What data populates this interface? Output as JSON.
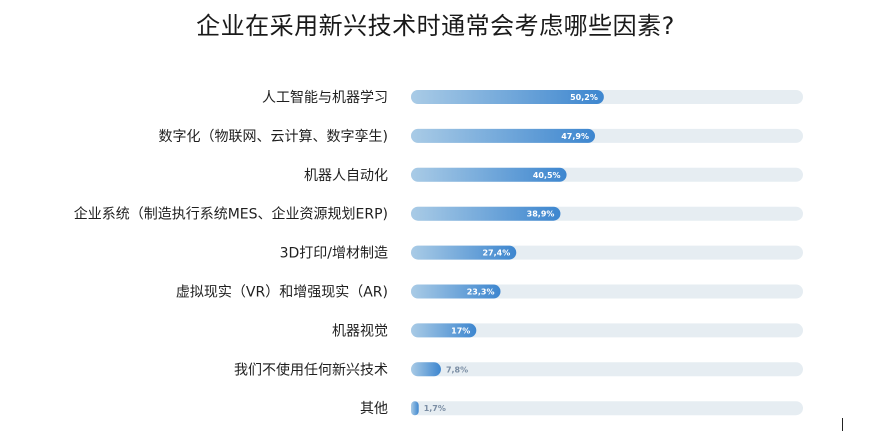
{
  "chart_data": {
    "type": "bar",
    "orientation": "horizontal",
    "title": "企业在采用新兴技术时通常会考虑哪些因素?",
    "categories": [
      "人工智能与机器学习",
      "数字化（物联网、云计算、数字孪生)",
      "机器人自动化",
      "企业系统（制造执行系统MES、企业资源规划ERP)",
      "3D打印/增材制造",
      "虚拟现实（VR）和增强现实（AR)",
      "机器视觉",
      "我们不使用任何新兴技术",
      "其他"
    ],
    "values": [
      50.2,
      47.9,
      40.5,
      38.9,
      27.4,
      23.3,
      17,
      7.8,
      1.7
    ],
    "value_labels": [
      "50,2%",
      "47,9%",
      "40,5%",
      "38,9%",
      "27,4%",
      "23,3%",
      "17%",
      "7,8%",
      "1,7%"
    ],
    "xlim": [
      0,
      100
    ],
    "grid": false,
    "legend": "none",
    "colors": {
      "bar_start": "#a9cbe6",
      "bar_end": "#3d86cf",
      "track": "#e6edf2",
      "label_text": "#1f1f1f",
      "outside_value_text": "#7a8da3"
    }
  }
}
